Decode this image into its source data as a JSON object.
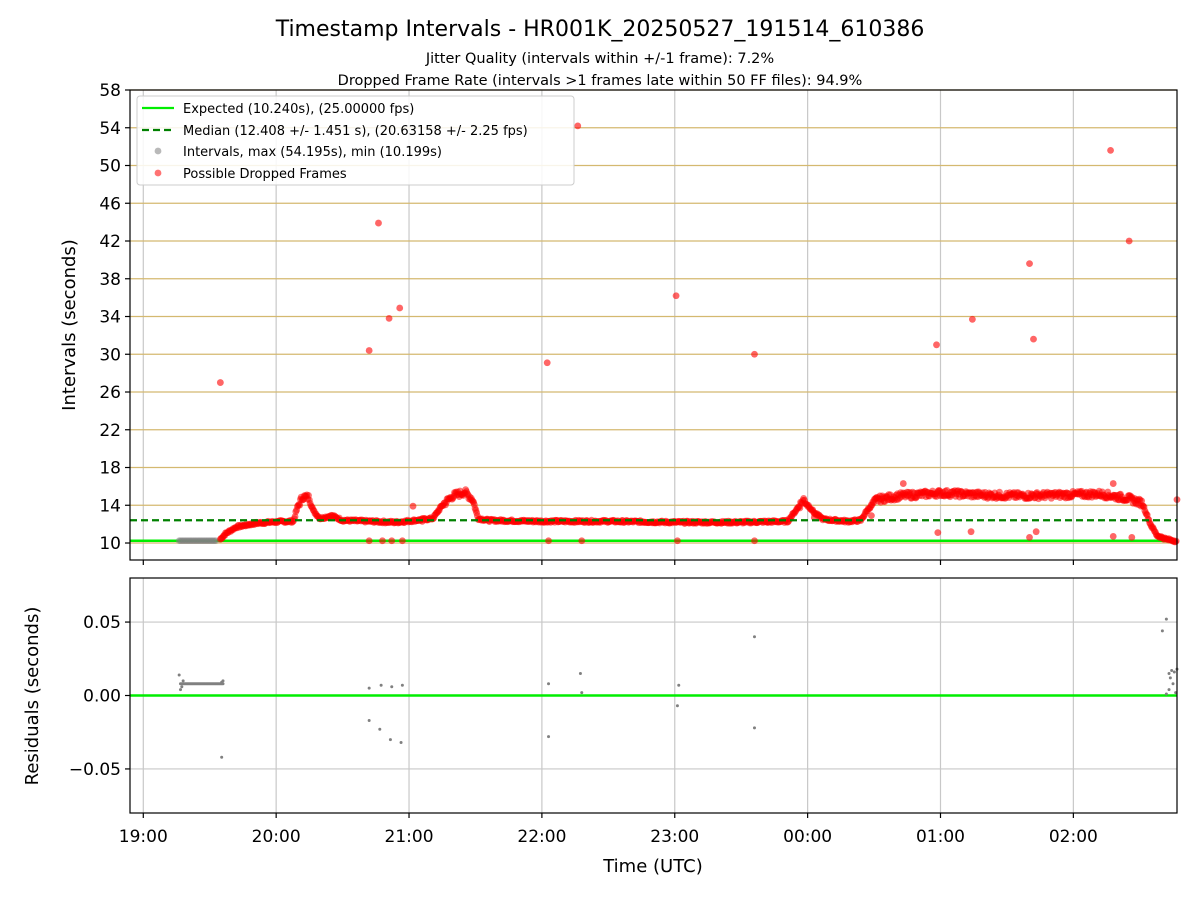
{
  "chart_data": {
    "type": "scatter",
    "title": "Timestamp Intervals - HR001K_20250527_191514_610386",
    "subtitle_lines": [
      "Jitter Quality (intervals within +/-1 frame): 7.2%",
      "Dropped Frame Rate (intervals >1 frames late within 50 FF files): 94.9%"
    ],
    "colors": {
      "expected": "#00ee00",
      "median": "#008000",
      "intervals": "#808080",
      "dropped": "#ff0000",
      "h_grid": "#d4b970",
      "v_grid": "#c8c8c8"
    },
    "x_axis": {
      "label": "Time (UTC)",
      "range_hours": [
        18.9,
        26.78
      ],
      "ticks": [
        {
          "value": 19,
          "label": "19:00"
        },
        {
          "value": 20,
          "label": "20:00"
        },
        {
          "value": 21,
          "label": "21:00"
        },
        {
          "value": 22,
          "label": "22:00"
        },
        {
          "value": 23,
          "label": "23:00"
        },
        {
          "value": 24,
          "label": "00:00"
        },
        {
          "value": 25,
          "label": "01:00"
        },
        {
          "value": 26,
          "label": "02:00"
        }
      ]
    },
    "top_panel": {
      "ylabel": "Intervals (seconds)",
      "ylim": [
        8.2,
        58
      ],
      "yticks": [
        10,
        14,
        18,
        22,
        26,
        30,
        34,
        38,
        42,
        46,
        50,
        54,
        58
      ],
      "expected_interval": 10.24,
      "median_interval": 12.408,
      "legend_position": "upper-left",
      "legend": [
        {
          "key": "expected",
          "label": "Expected (10.240s), (25.00000 fps)"
        },
        {
          "key": "median",
          "label": "Median (12.408 +/- 1.451 s), (20.63158 +/- 2.25 fps)"
        },
        {
          "key": "intervals",
          "label": "Intervals, max (54.195s), min (10.199s)"
        },
        {
          "key": "dropped",
          "label": "Possible Dropped Frames"
        }
      ],
      "intervals_segment": {
        "x_start": 19.27,
        "x_end": 19.55,
        "y": 10.25
      },
      "dropped_trend": [
        [
          19.58,
          10.4
        ],
        [
          19.62,
          11.0
        ],
        [
          19.7,
          11.7
        ],
        [
          19.85,
          12.1
        ],
        [
          20.0,
          12.25
        ],
        [
          20.13,
          12.3
        ],
        [
          20.16,
          13.8
        ],
        [
          20.2,
          14.9
        ],
        [
          20.25,
          14.8
        ],
        [
          20.28,
          13.4
        ],
        [
          20.33,
          12.6
        ],
        [
          20.42,
          12.9
        ],
        [
          20.5,
          12.4
        ],
        [
          20.7,
          12.3
        ],
        [
          20.9,
          12.2
        ],
        [
          21.05,
          12.4
        ],
        [
          21.18,
          12.6
        ],
        [
          21.25,
          14.0
        ],
        [
          21.33,
          15.0
        ],
        [
          21.42,
          15.4
        ],
        [
          21.48,
          14.6
        ],
        [
          21.52,
          12.6
        ],
        [
          21.6,
          12.4
        ],
        [
          22.0,
          12.3
        ],
        [
          22.5,
          12.3
        ],
        [
          23.0,
          12.2
        ],
        [
          23.5,
          12.2
        ],
        [
          23.85,
          12.3
        ],
        [
          23.93,
          13.8
        ],
        [
          23.97,
          14.6
        ],
        [
          24.05,
          13.2
        ],
        [
          24.12,
          12.5
        ],
        [
          24.3,
          12.3
        ],
        [
          24.4,
          12.4
        ],
        [
          24.45,
          13.5
        ],
        [
          24.52,
          14.6
        ],
        [
          24.7,
          15.0
        ],
        [
          25.0,
          15.3
        ],
        [
          25.3,
          15.1
        ],
        [
          25.6,
          15.0
        ],
        [
          25.9,
          15.1
        ],
        [
          26.2,
          15.2
        ],
        [
          26.42,
          14.7
        ],
        [
          26.52,
          14.2
        ],
        [
          26.58,
          12.0
        ],
        [
          26.63,
          10.8
        ],
        [
          26.7,
          10.4
        ],
        [
          26.78,
          10.2
        ]
      ],
      "dropped_outliers": [
        [
          19.58,
          27.0
        ],
        [
          20.7,
          30.4
        ],
        [
          20.77,
          43.9
        ],
        [
          20.85,
          33.8
        ],
        [
          20.93,
          34.9
        ],
        [
          21.03,
          13.9
        ],
        [
          22.04,
          29.1
        ],
        [
          22.27,
          54.2
        ],
        [
          23.01,
          36.2
        ],
        [
          23.6,
          30.0
        ],
        [
          24.97,
          31.0
        ],
        [
          25.24,
          33.7
        ],
        [
          25.67,
          39.6
        ],
        [
          25.7,
          31.6
        ],
        [
          26.28,
          51.6
        ],
        [
          26.42,
          42.0
        ],
        [
          26.78,
          14.6
        ],
        [
          26.3,
          16.3
        ],
        [
          24.72,
          16.3
        ],
        [
          20.7,
          10.24
        ],
        [
          20.8,
          10.24
        ],
        [
          20.87,
          10.24
        ],
        [
          20.95,
          10.24
        ],
        [
          22.05,
          10.24
        ],
        [
          22.3,
          10.24
        ],
        [
          23.02,
          10.24
        ],
        [
          23.6,
          10.24
        ],
        [
          24.98,
          11.1
        ],
        [
          25.23,
          11.2
        ],
        [
          25.67,
          10.6
        ],
        [
          25.72,
          11.2
        ],
        [
          26.3,
          10.7
        ],
        [
          26.44,
          10.6
        ],
        [
          24.05,
          12.7
        ],
        [
          24.48,
          12.9
        ],
        [
          23.7,
          12.2
        ],
        [
          21.1,
          12.3
        ]
      ]
    },
    "bottom_panel": {
      "ylabel": "Residuals (seconds)",
      "ylim": [
        -0.08,
        0.08
      ],
      "yticks": [
        {
          "value": 0.05,
          "label": "0.05"
        },
        {
          "value": 0.0,
          "label": "0.00"
        },
        {
          "value": -0.05,
          "label": "−0.05"
        }
      ],
      "zero_line": 0.0,
      "residual_cluster": {
        "x_start": 19.28,
        "x_end": 19.6,
        "y": 0.008
      },
      "residual_points": [
        [
          19.27,
          0.014
        ],
        [
          19.28,
          0.004
        ],
        [
          19.29,
          0.006
        ],
        [
          19.3,
          0.01
        ],
        [
          19.59,
          0.009
        ],
        [
          19.6,
          0.01
        ],
        [
          19.59,
          -0.042
        ],
        [
          20.7,
          0.005
        ],
        [
          20.79,
          0.007
        ],
        [
          20.87,
          0.006
        ],
        [
          20.95,
          0.007
        ],
        [
          20.7,
          -0.017
        ],
        [
          20.78,
          -0.023
        ],
        [
          20.86,
          -0.03
        ],
        [
          20.94,
          -0.032
        ],
        [
          22.05,
          0.008
        ],
        [
          22.29,
          0.015
        ],
        [
          22.3,
          0.002
        ],
        [
          22.05,
          -0.028
        ],
        [
          23.03,
          0.007
        ],
        [
          23.02,
          -0.007
        ],
        [
          23.6,
          0.04
        ],
        [
          23.6,
          -0.022
        ],
        [
          26.67,
          0.044
        ],
        [
          26.7,
          0.052
        ],
        [
          26.72,
          0.015
        ],
        [
          26.74,
          0.017
        ],
        [
          26.76,
          0.016
        ],
        [
          26.72,
          0.004
        ],
        [
          26.7,
          0.001
        ],
        [
          26.75,
          0.008
        ],
        [
          26.77,
          0.002
        ],
        [
          26.78,
          0.018
        ],
        [
          26.73,
          0.012
        ]
      ]
    }
  }
}
